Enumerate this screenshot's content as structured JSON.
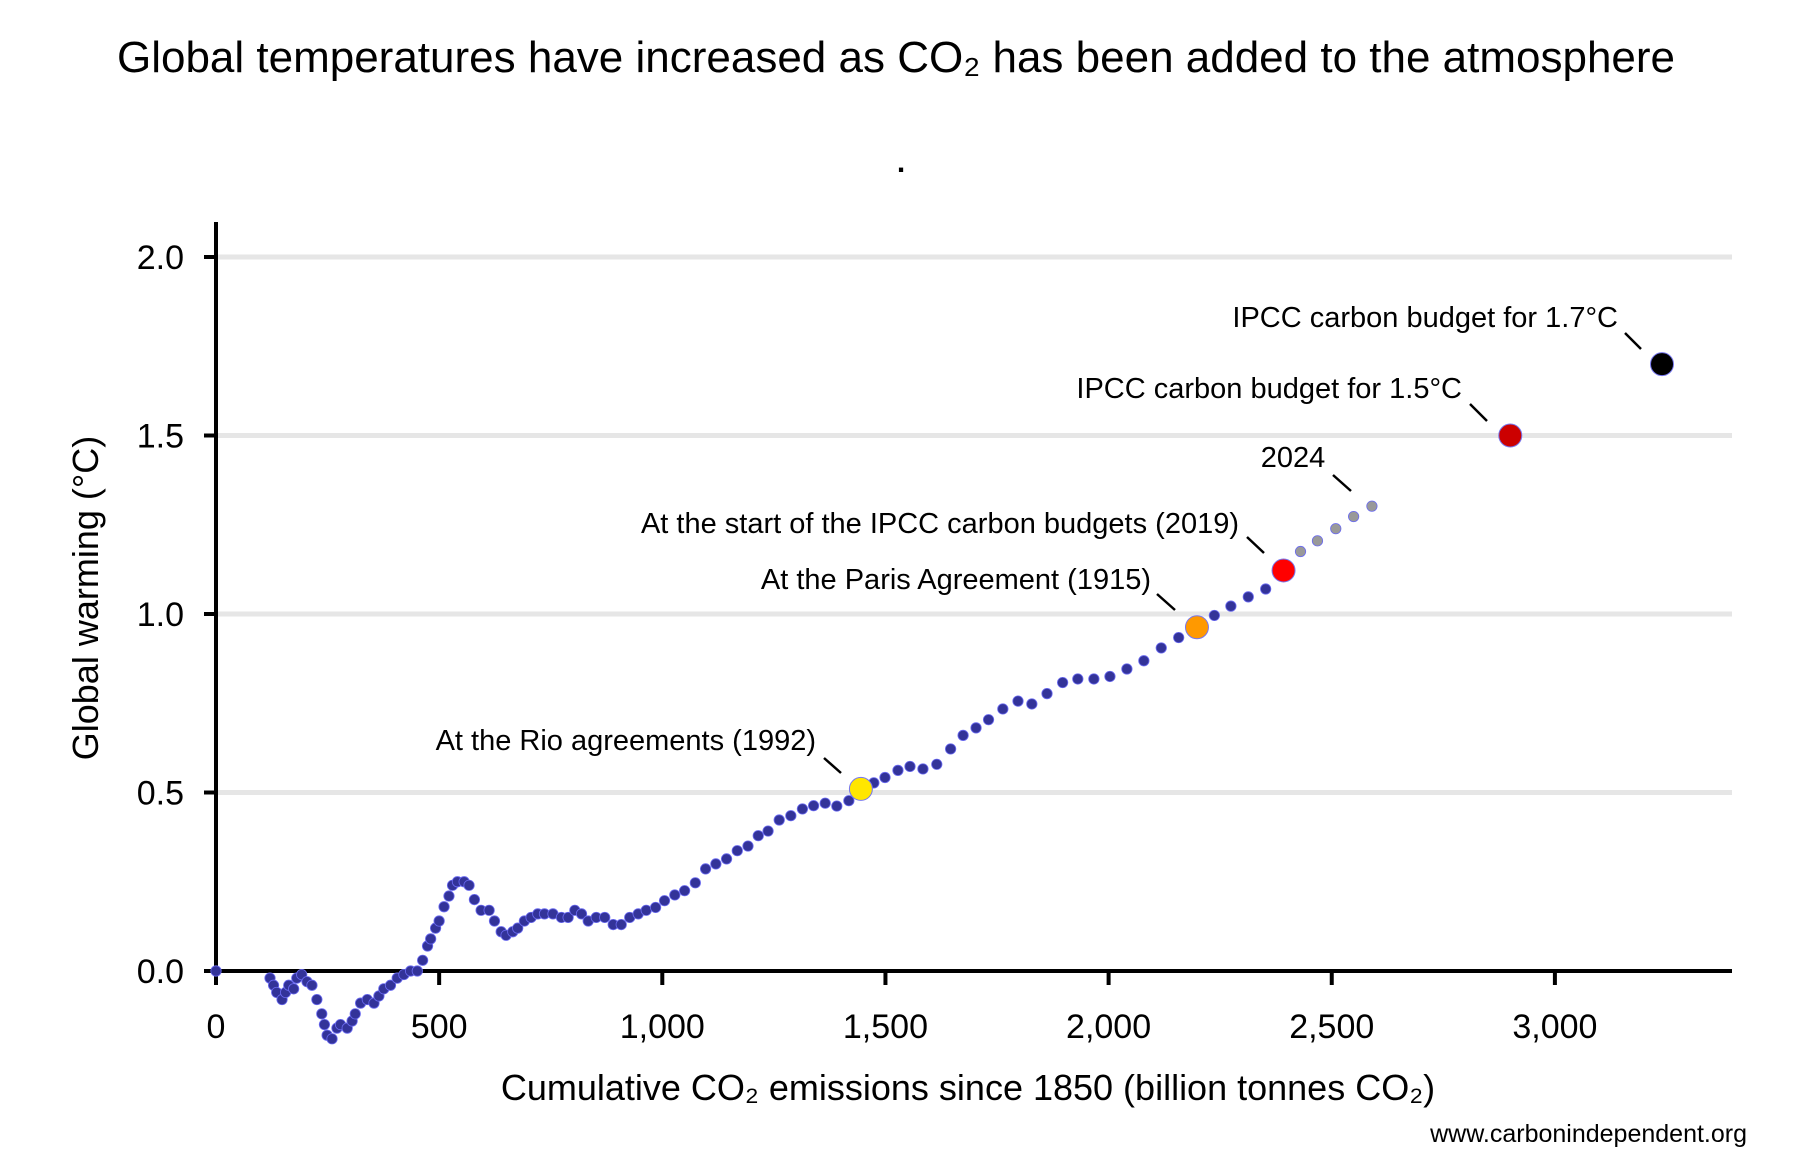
{
  "chart_data": {
    "type": "scatter",
    "title": "Global temperatures have increased as CO₂ has been added to the atmosphere",
    "subtitle": ".",
    "xlabel": "Cumulative CO₂ emissions since 1850 (billion tonnes CO₂)",
    "ylabel": "Global warming (°C)",
    "xlim": [
      0,
      3400
    ],
    "ylim": [
      -0.2,
      2.1
    ],
    "xticks": [
      0,
      500,
      1000,
      1500,
      2000,
      2500,
      3000
    ],
    "xtick_labels": [
      "0",
      "500",
      "1,000",
      "1,500",
      "2,000",
      "2,500",
      "3,000"
    ],
    "yticks": [
      0,
      0.5,
      1.0,
      1.5,
      2.0
    ],
    "ytick_labels": [
      "0.0",
      "0.5",
      "1.0",
      "1.5",
      "2.0"
    ],
    "grid": "horizontal",
    "series": [
      {
        "color": "#333399",
        "points": [
          [
            0,
            0
          ],
          [
            121,
            -0.02
          ],
          [
            129,
            -0.04
          ],
          [
            136,
            -0.06
          ],
          [
            148,
            -0.08
          ],
          [
            156,
            -0.06
          ],
          [
            163,
            -0.04
          ],
          [
            174,
            -0.05
          ],
          [
            181,
            -0.02
          ],
          [
            192,
            -0.01
          ],
          [
            204,
            -0.03
          ],
          [
            215,
            -0.04
          ],
          [
            226,
            -0.08
          ],
          [
            237,
            -0.12
          ],
          [
            243,
            -0.15
          ],
          [
            249,
            -0.18
          ],
          [
            260,
            -0.19
          ],
          [
            271,
            -0.16
          ],
          [
            279,
            -0.15
          ],
          [
            294,
            -0.16
          ],
          [
            305,
            -0.14
          ],
          [
            312,
            -0.12
          ],
          [
            324,
            -0.09
          ],
          [
            339,
            -0.08
          ],
          [
            354,
            -0.09
          ],
          [
            365,
            -0.07
          ],
          [
            376,
            -0.05
          ],
          [
            391,
            -0.04
          ],
          [
            406,
            -0.02
          ],
          [
            421,
            -0.01
          ],
          [
            436,
            0.0
          ],
          [
            451,
            0.0
          ],
          [
            463,
            0.03
          ],
          [
            474,
            0.07
          ],
          [
            481,
            0.09
          ],
          [
            492,
            0.12
          ],
          [
            500,
            0.14
          ],
          [
            511,
            0.18
          ],
          [
            522,
            0.21
          ],
          [
            530,
            0.24
          ],
          [
            541,
            0.25
          ],
          [
            556,
            0.25
          ],
          [
            567,
            0.24
          ],
          [
            579,
            0.2
          ],
          [
            594,
            0.17
          ],
          [
            612,
            0.17
          ],
          [
            624,
            0.14
          ],
          [
            639,
            0.11
          ],
          [
            650,
            0.1
          ],
          [
            665,
            0.11
          ],
          [
            676,
            0.12
          ],
          [
            691,
            0.14
          ],
          [
            706,
            0.15
          ],
          [
            721,
            0.16
          ],
          [
            736,
            0.16
          ],
          [
            755,
            0.16
          ],
          [
            774,
            0.15
          ],
          [
            789,
            0.15
          ],
          [
            804,
            0.17
          ],
          [
            819,
            0.16
          ],
          [
            834,
            0.14
          ],
          [
            852,
            0.15
          ],
          [
            871,
            0.15
          ],
          [
            890,
            0.13
          ],
          [
            908,
            0.13
          ],
          [
            927,
            0.15
          ],
          [
            946,
            0.16
          ],
          [
            964,
            0.17
          ],
          [
            985,
            0.178
          ],
          [
            1005,
            0.197
          ],
          [
            1028,
            0.213
          ],
          [
            1050,
            0.225
          ],
          [
            1074,
            0.247
          ],
          [
            1097,
            0.286
          ],
          [
            1120,
            0.3
          ],
          [
            1144,
            0.314
          ],
          [
            1168,
            0.337
          ],
          [
            1192,
            0.35
          ],
          [
            1215,
            0.379
          ],
          [
            1237,
            0.392
          ],
          [
            1262,
            0.423
          ],
          [
            1288,
            0.435
          ],
          [
            1314,
            0.454
          ],
          [
            1339,
            0.463
          ],
          [
            1365,
            0.47
          ],
          [
            1391,
            0.462
          ],
          [
            1418,
            0.477
          ],
          [
            1474,
            0.527
          ],
          [
            1499,
            0.542
          ],
          [
            1528,
            0.562
          ],
          [
            1555,
            0.573
          ],
          [
            1584,
            0.566
          ],
          [
            1615,
            0.579
          ],
          [
            1646,
            0.622
          ],
          [
            1674,
            0.66
          ],
          [
            1703,
            0.681
          ],
          [
            1731,
            0.704
          ],
          [
            1763,
            0.734
          ],
          [
            1797,
            0.756
          ],
          [
            1828,
            0.748
          ],
          [
            1862,
            0.777
          ],
          [
            1897,
            0.808
          ],
          [
            1931,
            0.818
          ],
          [
            1967,
            0.818
          ],
          [
            2003,
            0.825
          ],
          [
            2041,
            0.846
          ],
          [
            2079,
            0.869
          ],
          [
            2118,
            0.905
          ],
          [
            2157,
            0.934
          ],
          [
            2237,
            0.996
          ],
          [
            2274,
            1.022
          ],
          [
            2313,
            1.048
          ],
          [
            2352,
            1.07
          ]
        ]
      },
      {
        "color": "#999999",
        "points": [
          [
            2430,
            1.175
          ],
          [
            2468,
            1.205
          ],
          [
            2509,
            1.239
          ],
          [
            2549,
            1.273
          ],
          [
            2590,
            1.302
          ]
        ]
      }
    ],
    "annotations": [
      {
        "label": "At the Rio agreements (1992)",
        "x": 1445,
        "y": 0.51,
        "color": "#FFE600"
      },
      {
        "label": "At the Paris Agreement (1915)",
        "x": 2198,
        "y": 0.963,
        "color": "#FF9900"
      },
      {
        "label": "At the start of the IPCC carbon budgets (2019)",
        "x": 2392,
        "y": 1.122,
        "color": "#FF0000"
      },
      {
        "label": "2024",
        "x": 2590,
        "y": 1.302,
        "color": ""
      },
      {
        "label": "IPCC carbon budget for 1.5°C",
        "x": 2900,
        "y": 1.5,
        "color": "#CC0000"
      },
      {
        "label": "IPCC carbon budget for 1.7°C",
        "x": 3240,
        "y": 1.7,
        "color": "#000000"
      }
    ]
  },
  "credit": "www.carbonindependent.org"
}
